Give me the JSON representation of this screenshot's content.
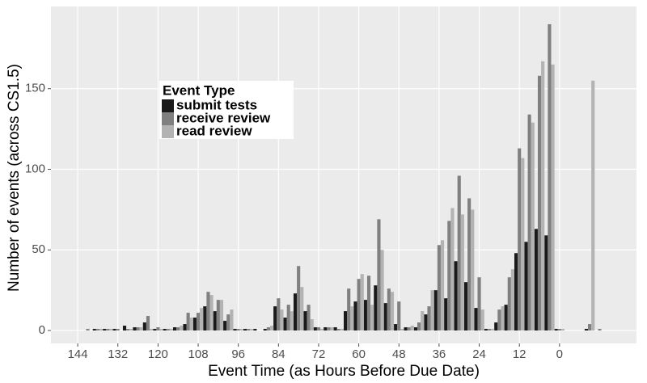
{
  "chart_data": {
    "type": "bar",
    "x_label": "Event Time (as Hours Before Due Date)",
    "y_label": "Number of events (across CS1.5)",
    "legend_title": "Event Type",
    "x": [
      144,
      141,
      138,
      135,
      132,
      129,
      126,
      123,
      120,
      117,
      114,
      111,
      108,
      105,
      102,
      99,
      96,
      93,
      90,
      87,
      84,
      81,
      78,
      75,
      72,
      69,
      66,
      63,
      60,
      57,
      54,
      51,
      48,
      45,
      42,
      39,
      36,
      33,
      30,
      27,
      24,
      21,
      18,
      15,
      12,
      9,
      6,
      3,
      0,
      -3,
      -6,
      -9,
      -12
    ],
    "series": [
      {
        "name": "submit tests",
        "color": "#1a1a1a",
        "values": [
          0,
          0,
          1,
          1,
          1,
          3,
          2,
          5,
          1,
          1,
          2,
          4,
          8,
          15,
          12,
          6,
          1,
          1,
          1,
          1,
          15,
          8,
          23,
          12,
          2,
          2,
          2,
          12,
          18,
          19,
          28,
          17,
          4,
          2,
          2,
          10,
          25,
          20,
          43,
          30,
          14,
          1,
          5,
          16,
          48,
          55,
          63,
          59,
          1,
          0,
          0,
          1,
          0
        ]
      },
      {
        "name": "receive review",
        "color": "#808080",
        "values": [
          0,
          1,
          1,
          1,
          1,
          1,
          2,
          9,
          2,
          1,
          2,
          11,
          11,
          24,
          19,
          10,
          1,
          1,
          0,
          2,
          20,
          16,
          40,
          16,
          2,
          2,
          1,
          26,
          32,
          34,
          69,
          26,
          18,
          2,
          5,
          15,
          53,
          68,
          96,
          82,
          33,
          1,
          13,
          33,
          113,
          134,
          158,
          190,
          1,
          0,
          0,
          4,
          1
        ]
      },
      {
        "name": "read review",
        "color": "#b3b3b3",
        "values": [
          0,
          0,
          1,
          1,
          0,
          1,
          2,
          1,
          1,
          1,
          3,
          8,
          14,
          22,
          19,
          13,
          1,
          1,
          0,
          3,
          13,
          12,
          27,
          7,
          1,
          2,
          1,
          15,
          35,
          16,
          50,
          24,
          1,
          3,
          12,
          25,
          56,
          76,
          72,
          75,
          13,
          1,
          15,
          38,
          107,
          129,
          167,
          165,
          1,
          0,
          0,
          155,
          0
        ]
      }
    ],
    "xlim": [
      152,
      -23
    ],
    "xticks": [
      144,
      132,
      120,
      108,
      96,
      84,
      72,
      60,
      48,
      36,
      24,
      12,
      0
    ],
    "ylim": [
      -8,
      201
    ],
    "yticks": [
      0,
      50,
      100,
      150
    ],
    "grid": true,
    "legend_position": "top-left"
  }
}
